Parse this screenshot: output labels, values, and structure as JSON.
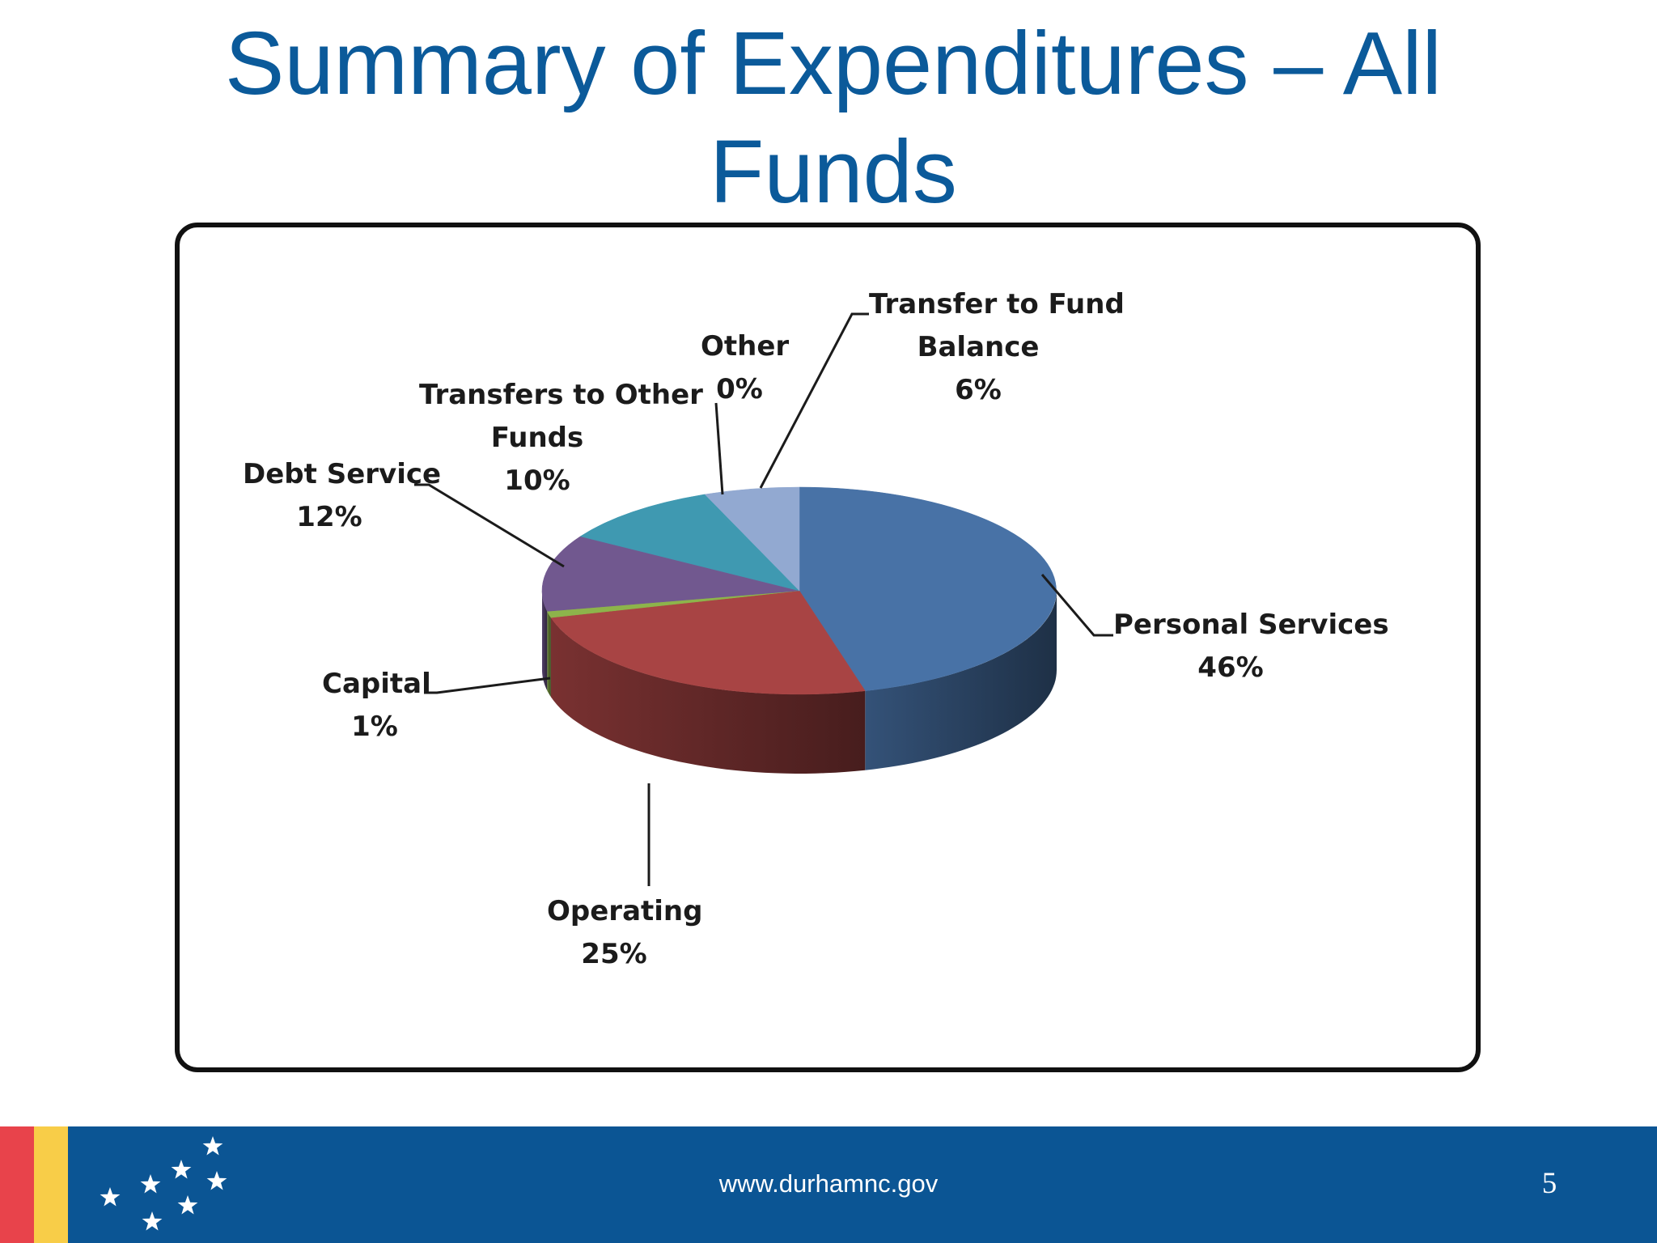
{
  "slide": {
    "title": "Summary of Expenditures – All Funds",
    "footer_url": "www.durhamnc.gov",
    "page_number": "5"
  },
  "colors": {
    "title": "#0b5a9a",
    "footer_bar": "#0b5594",
    "stripe_red": "#e8434b",
    "stripe_yellow": "#f8cd48"
  },
  "chart_data": {
    "type": "pie",
    "style": "3d",
    "title": "",
    "categories": [
      "Personal Services",
      "Operating",
      "Capital",
      "Debt Service",
      "Transfers to Other Funds",
      "Other",
      "Transfer to Fund Balance"
    ],
    "values": [
      46,
      25,
      1,
      12,
      10,
      0,
      6
    ],
    "labels": [
      {
        "lines": [
          "Personal Services",
          "46%"
        ]
      },
      {
        "lines": [
          "Operating",
          "25%"
        ]
      },
      {
        "lines": [
          "Capital",
          "1%"
        ]
      },
      {
        "lines": [
          "Debt Service",
          "12%"
        ]
      },
      {
        "lines": [
          "Transfers to Other",
          "Funds",
          "10%"
        ]
      },
      {
        "lines": [
          "Other",
          "0%"
        ]
      },
      {
        "lines": [
          "Transfer to Fund",
          "Balance",
          "6%"
        ]
      }
    ],
    "colors": [
      "#4872a6",
      "#a84444",
      "#8db44b",
      "#71588f",
      "#3f99b1",
      "#3f99b1",
      "#92a9d1"
    ],
    "legend": "none"
  }
}
